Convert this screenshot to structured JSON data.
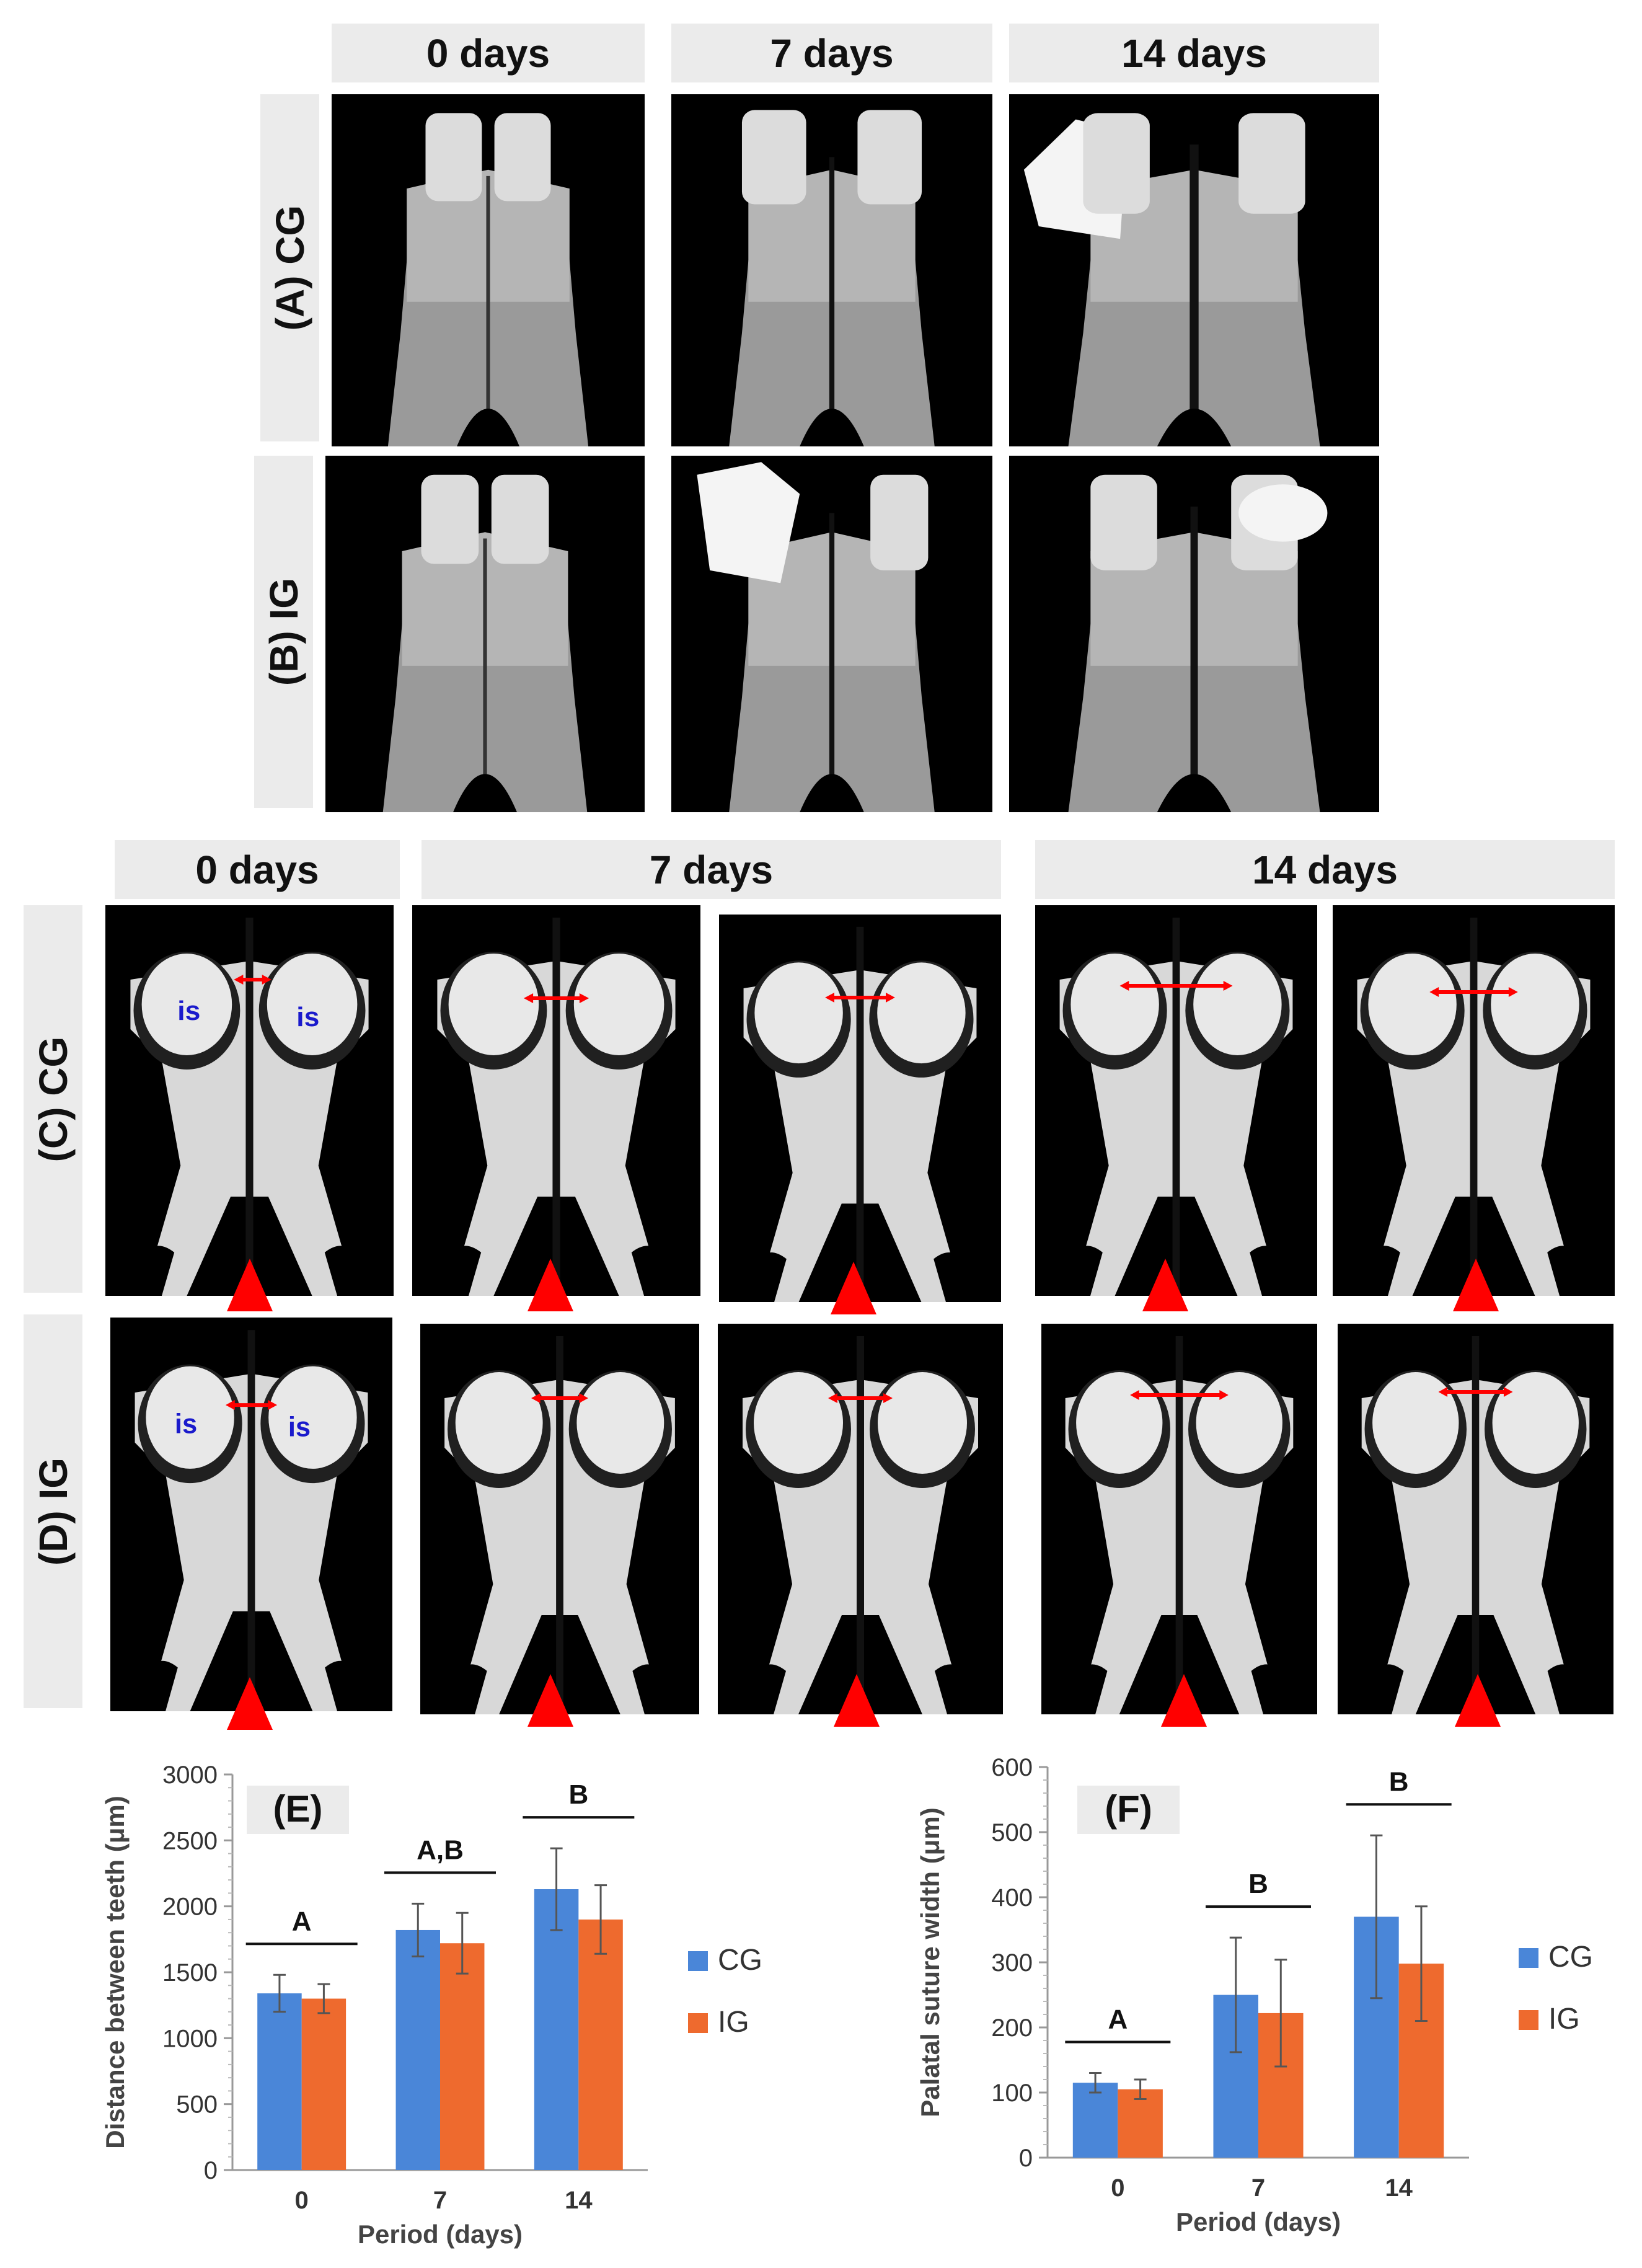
{
  "panels_top": {
    "headers": [
      "0 days",
      "7 days",
      "14 days"
    ],
    "row_labels": [
      "(A) CG",
      "(B) IG"
    ]
  },
  "panels_bottom": {
    "headers": [
      "0 days",
      "7 days",
      "14 days"
    ],
    "row_labels": [
      "(C) CG",
      "(D) IG"
    ],
    "incisor_label": "is"
  },
  "colors": {
    "cg": "#4a86d8",
    "ig": "#ee6a2e",
    "arrow": "#ff0000",
    "header_bg": "#ebebeb"
  },
  "chart_data": [
    {
      "type": "bar",
      "panel_label": "(E)",
      "categories": [
        "0",
        "7",
        "14"
      ],
      "xlabel": "Period (days)",
      "ylabel": "Distance between teeth (μm)",
      "ylim": [
        0,
        3000
      ],
      "yticks": [
        0,
        500,
        1000,
        1500,
        2000,
        2500,
        3000
      ],
      "series": [
        {
          "name": "CG",
          "values": [
            1340,
            1820,
            2130
          ],
          "errors": [
            140,
            200,
            310
          ]
        },
        {
          "name": "IG",
          "values": [
            1300,
            1720,
            1900
          ],
          "errors": [
            110,
            230,
            260
          ]
        }
      ],
      "significance": [
        "A",
        "A,B",
        "B"
      ],
      "legend": "right"
    },
    {
      "type": "bar",
      "panel_label": "(F)",
      "categories": [
        "0",
        "7",
        "14"
      ],
      "xlabel": "Period (days)",
      "ylabel": "Palatal suture width (μm)",
      "ylim": [
        0,
        600
      ],
      "yticks": [
        0,
        100,
        200,
        300,
        400,
        500,
        600
      ],
      "series": [
        {
          "name": "CG",
          "values": [
            115,
            250,
            370
          ],
          "errors": [
            15,
            88,
            125
          ]
        },
        {
          "name": "IG",
          "values": [
            105,
            222,
            298
          ],
          "errors": [
            15,
            82,
            88
          ]
        }
      ],
      "significance": [
        "A",
        "B",
        "B"
      ],
      "legend": "right"
    }
  ]
}
